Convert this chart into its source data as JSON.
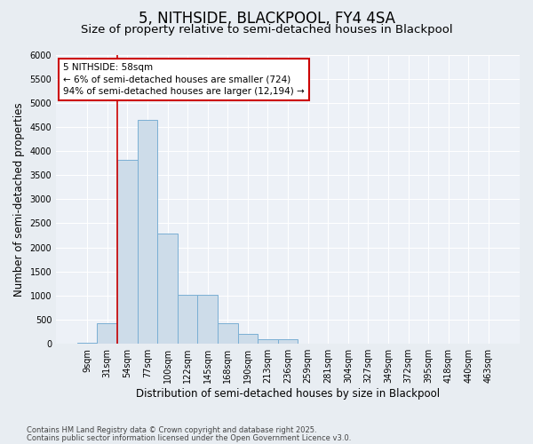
{
  "title": "5, NITHSIDE, BLACKPOOL, FY4 4SA",
  "subtitle": "Size of property relative to semi-detached houses in Blackpool",
  "xlabel": "Distribution of semi-detached houses by size in Blackpool",
  "ylabel": "Number of semi-detached properties",
  "categories": [
    "9sqm",
    "31sqm",
    "54sqm",
    "77sqm",
    "100sqm",
    "122sqm",
    "145sqm",
    "168sqm",
    "190sqm",
    "213sqm",
    "236sqm",
    "259sqm",
    "281sqm",
    "304sqm",
    "327sqm",
    "349sqm",
    "372sqm",
    "395sqm",
    "418sqm",
    "440sqm",
    "463sqm"
  ],
  "values": [
    30,
    430,
    3820,
    4650,
    2280,
    1010,
    1010,
    420,
    200,
    100,
    100,
    0,
    0,
    0,
    0,
    0,
    0,
    0,
    0,
    0,
    0
  ],
  "bar_color": "#cddce9",
  "bar_edge_color": "#7aafd4",
  "red_line_x": 1.5,
  "annotation_title": "5 NITHSIDE: 58sqm",
  "annotation_line1": "← 6% of semi-detached houses are smaller (724)",
  "annotation_line2": "94% of semi-detached houses are larger (12,194) →",
  "annotation_box_color": "#ffffff",
  "annotation_border_color": "#cc0000",
  "red_line_color": "#cc0000",
  "footnote1": "Contains HM Land Registry data © Crown copyright and database right 2025.",
  "footnote2": "Contains public sector information licensed under the Open Government Licence v3.0.",
  "ylim": [
    0,
    6000
  ],
  "yticks": [
    0,
    500,
    1000,
    1500,
    2000,
    2500,
    3000,
    3500,
    4000,
    4500,
    5000,
    5500,
    6000
  ],
  "bg_color": "#e8edf2",
  "plot_bg_color": "#edf1f7",
  "title_fontsize": 12,
  "subtitle_fontsize": 9.5,
  "label_fontsize": 8.5,
  "tick_fontsize": 7,
  "annot_fontsize": 7.5
}
